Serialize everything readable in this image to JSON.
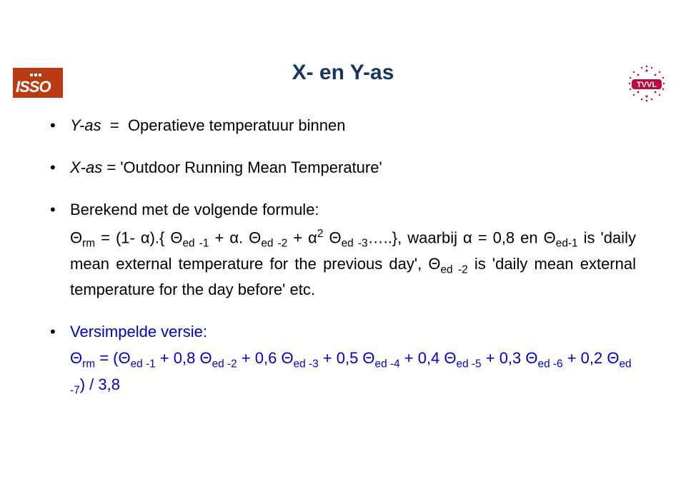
{
  "logos": {
    "isso_text": "ISSO",
    "isso_bg": "#ba3a11",
    "isso_fg": "#ffffff",
    "tvvl_color": "#b80c3c",
    "tvvl_text": "TVVL"
  },
  "title": "X- en Y-as",
  "bullets": {
    "b1": {
      "label": "Y-as",
      "eq": "=",
      "desc": "Operatieve temperatuur binnen"
    },
    "b2": {
      "label": "X-as",
      "eq": "=",
      "desc": "'Outdoor Running Mean Temperature'"
    },
    "b3": {
      "lead": "Berekend met de volgende formule:",
      "formula_html": "Θ<sub>rm</sub> = (1- α).{ Θ<sub>ed -1</sub> + α. Θ<sub>ed -2</sub> + α<sup>2</sup> Θ<sub>ed -3</sub>…..}, waarbij α = 0,8 en Θ<sub>ed-1</sub> is 'daily mean external temperature for the previous day', Θ<sub>ed -2</sub> is 'daily mean external temperature for the day before' etc."
    },
    "b4": {
      "lead": "Versimpelde versie:",
      "formula_html": "Θ<sub>rm</sub> = (Θ<sub>ed -1</sub> + 0,8 Θ<sub>ed -2</sub> + 0,6 Θ<sub>ed -3</sub> + 0,5 Θ<sub>ed -4</sub> + 0,4 Θ<sub>ed -5</sub> + 0,3 Θ<sub>ed -6</sub> + 0,2 Θ<sub>ed -7</sub>) / 3,8"
    }
  },
  "colors": {
    "title": "#17375e",
    "text": "#000000",
    "versimpelde": "#0000cc",
    "background": "#ffffff"
  },
  "fonts": {
    "title_family": "Comic Sans MS",
    "body_family": "Arial",
    "title_size_pt": 22,
    "body_size_pt": 16
  }
}
